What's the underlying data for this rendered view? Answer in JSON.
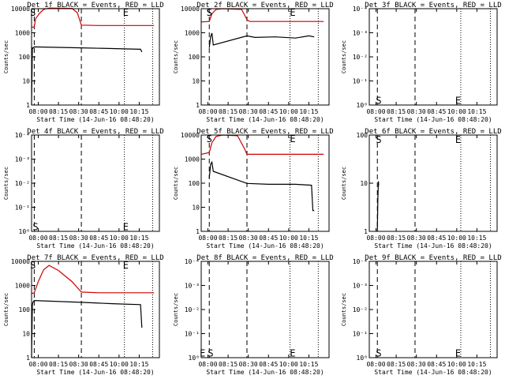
{
  "figure": {
    "background": "#ffffff",
    "axis_color": "#000000",
    "events_color": "#000000",
    "lld_color": "#cc0000"
  },
  "chart_data": [
    {
      "type": "line",
      "title": "Det 1f BLACK = Events, RED = LLD",
      "xlabel": "Start Time (14-Jun-16 08:48:20)",
      "ylabel": "Counts/sec",
      "x_tick_labels": [
        "08:00",
        "08:15",
        "08:30",
        "08:45",
        "10:00",
        "10:15"
      ],
      "y_tick_labels": [
        "1",
        "10",
        "100",
        "1000",
        "10000"
      ],
      "y_scale": "log",
      "ylim": [
        1,
        15000
      ],
      "grid": false,
      "dashed_lines_minutes": [
        2,
        37
      ],
      "dotted_lines_minutes": [
        69,
        90
      ],
      "annotations": [
        {
          "text": "S",
          "minute": 1,
          "y": 10000
        },
        {
          "text": "E",
          "minute": 70,
          "y": 10000
        }
      ],
      "series": [
        {
          "name": "BLACK = Events",
          "color": "#000000",
          "minute_start": 0,
          "minute_end": 82,
          "points": [
            [
              0,
              1.0
            ],
            [
              0.6,
              300
            ],
            [
              1,
              290
            ],
            [
              2,
              330
            ],
            [
              37,
              300
            ],
            [
              60,
              280
            ],
            [
              81,
              260
            ],
            [
              82,
              200
            ]
          ]
        },
        {
          "name": "RED = LLD",
          "color": "#cc0000",
          "minute_start": 0,
          "minute_end": 91,
          "points": [
            [
              0,
              2400
            ],
            [
              2,
              2400
            ],
            [
              3,
              5500
            ],
            [
              6,
              9500
            ],
            [
              9,
              14000
            ],
            [
              13,
              16000
            ],
            [
              30,
              15500
            ],
            [
              34,
              10000
            ],
            [
              37,
              2900
            ],
            [
              50,
              2800
            ],
            [
              91,
              2800
            ]
          ]
        }
      ]
    },
    {
      "type": "line",
      "title": "Det 2f BLACK = Events, RED = LLD",
      "xlabel": "Start Time (14-Jun-16 08:48:20)",
      "ylabel": "Counts/sec",
      "x_tick_labels": [
        "08:00",
        "08:15",
        "08:30",
        "08:45",
        "10:00",
        "10:15"
      ],
      "y_tick_labels": [
        "1",
        "10",
        "100",
        "1000",
        "10000"
      ],
      "y_scale": "log",
      "ylim": [
        1,
        15000
      ],
      "grid": false,
      "dashed_lines_minutes": [
        6,
        34
      ],
      "dotted_lines_minutes": [
        66,
        87
      ],
      "annotations": [
        {
          "text": "S",
          "minute": 6,
          "y": 10000
        },
        {
          "text": "E",
          "minute": 68,
          "y": 10000
        }
      ],
      "series": [
        {
          "name": "BLACK = Events",
          "color": "#000000",
          "minute_start": 6,
          "minute_end": 84,
          "points": [
            [
              6,
              300
            ],
            [
              7,
              900
            ],
            [
              8,
              1300
            ],
            [
              9,
              400
            ],
            [
              34,
              1000
            ],
            [
              40,
              850
            ],
            [
              55,
              900
            ],
            [
              70,
              800
            ],
            [
              80,
              1000
            ],
            [
              84,
              900
            ]
          ]
        },
        {
          "name": "RED = LLD",
          "color": "#cc0000",
          "minute_start": 0,
          "minute_end": 91,
          "points": [
            [
              0,
              4000
            ],
            [
              6,
              4200
            ],
            [
              8,
              9000
            ],
            [
              11,
              14000
            ],
            [
              16,
              15000
            ],
            [
              30,
              14000
            ],
            [
              34,
              5000
            ],
            [
              36,
              4200
            ],
            [
              91,
              4200
            ]
          ]
        }
      ]
    },
    {
      "type": "line",
      "title": "Det 3f BLACK = Events, RED = LLD",
      "xlabel": "Start Time (14-Jun-16 08:48:20)",
      "ylabel": "Counts/sec",
      "x_tick_labels": [
        "08:00",
        "08:15",
        "08:30",
        "08:45",
        "10:00",
        "10:15"
      ],
      "y_tick_labels": [
        "10⁰",
        "10⁻¹",
        "10⁻²",
        "10⁻³",
        "10⁻⁴"
      ],
      "y_scale": "log",
      "ylim": [
        1,
        100000
      ],
      "grid": false,
      "dashed_lines_minutes": [
        6,
        34
      ],
      "dotted_lines_minutes": [
        68,
        90
      ],
      "annotations": [
        {
          "text": "S",
          "minute": 7,
          "y": 1.7
        },
        {
          "text": "E",
          "minute": 66,
          "y": 1.7
        }
      ],
      "series": []
    },
    {
      "type": "line",
      "title": "Det 4f BLACK = Events, RED = LLD",
      "xlabel": "Start Time (14-Jun-16 08:48:20)",
      "ylabel": "Counts/sec",
      "x_tick_labels": [
        "08:00",
        "08:15",
        "08:30",
        "08:45",
        "10:00",
        "10:15"
      ],
      "y_tick_labels": [
        "10⁰",
        "10⁻¹",
        "10⁻²",
        "10⁻³",
        "10⁻⁴"
      ],
      "y_scale": "log",
      "ylim": [
        1,
        100000
      ],
      "grid": false,
      "dashed_lines_minutes": [
        2,
        37
      ],
      "dotted_lines_minutes": [
        69,
        90
      ],
      "annotations": [
        {
          "text": "S",
          "minute": 3,
          "y": 1.7
        },
        {
          "text": "E",
          "minute": 70,
          "y": 1.7
        }
      ],
      "series": []
    },
    {
      "type": "line",
      "title": "Det 5f BLACK = Events, RED = LLD",
      "xlabel": "Start Time (14-Jun-16 08:48:20)",
      "ylabel": "Counts/sec",
      "x_tick_labels": [
        "08:00",
        "08:15",
        "08:30",
        "08:45",
        "10:00",
        "10:15"
      ],
      "y_tick_labels": [
        "1",
        "10",
        "100",
        "1000",
        "10000"
      ],
      "y_scale": "log",
      "ylim": [
        1,
        15000
      ],
      "grid": false,
      "dashed_lines_minutes": [
        6,
        34
      ],
      "dotted_lines_minutes": [
        66,
        87
      ],
      "annotations": [
        {
          "text": "S",
          "minute": 6,
          "y": 10000
        },
        {
          "text": "E",
          "minute": 68,
          "y": 10000
        }
      ],
      "series": [
        {
          "name": "BLACK = Events",
          "color": "#000000",
          "minute_start": 6,
          "minute_end": 84,
          "points": [
            [
              6,
              200
            ],
            [
              7,
              800
            ],
            [
              8,
              1000
            ],
            [
              9,
              400
            ],
            [
              34,
              120
            ],
            [
              50,
              110
            ],
            [
              70,
              110
            ],
            [
              82,
              100
            ],
            [
              83,
              8
            ],
            [
              84,
              8
            ]
          ]
        },
        {
          "name": "RED = LLD",
          "color": "#cc0000",
          "minute_start": 0,
          "minute_end": 91,
          "points": [
            [
              0,
              2200
            ],
            [
              6,
              2600
            ],
            [
              8,
              7000
            ],
            [
              11,
              13000
            ],
            [
              16,
              15000
            ],
            [
              27,
              14000
            ],
            [
              32,
              4000
            ],
            [
              34,
              2200
            ],
            [
              91,
              2200
            ]
          ]
        }
      ]
    },
    {
      "type": "line",
      "title": "Det 6f BLACK = Events, RED = LLD",
      "xlabel": "Start Time (14-Jun-16 08:48:20)",
      "ylabel": "Counts/sec",
      "x_tick_labels": [
        "08:00",
        "08:15",
        "08:30",
        "08:45",
        "10:00",
        "10:15"
      ],
      "y_tick_labels": [
        "1",
        "10",
        "100"
      ],
      "y_scale": "log",
      "ylim": [
        1,
        100
      ],
      "grid": false,
      "dashed_lines_minutes": [
        6,
        34
      ],
      "dotted_lines_minutes": [
        68,
        90
      ],
      "annotations": [
        {
          "text": "S",
          "minute": 7,
          "y": 80
        },
        {
          "text": "E",
          "minute": 66,
          "y": 80
        }
      ],
      "series": [
        {
          "name": "BLACK = Events",
          "color": "#000000",
          "minute_start": 6,
          "minute_end": 7,
          "points": [
            [
              6,
              1
            ],
            [
              6.4,
              5
            ],
            [
              6.8,
              11
            ],
            [
              7,
              9
            ]
          ]
        }
      ]
    },
    {
      "type": "line",
      "title": "Det 7f BLACK = Events, RED = LLD",
      "xlabel": "Start Time (14-Jun-16 08:48:20)",
      "ylabel": "Counts/sec",
      "x_tick_labels": [
        "08:00",
        "08:15",
        "08:30",
        "08:45",
        "10:00",
        "10:15"
      ],
      "y_tick_labels": [
        "1",
        "10",
        "100",
        "1000",
        "10000"
      ],
      "y_scale": "log",
      "ylim": [
        1,
        15000
      ],
      "grid": false,
      "dashed_lines_minutes": [
        2,
        37
      ],
      "dotted_lines_minutes": [
        69,
        90
      ],
      "annotations": [
        {
          "text": "S",
          "minute": 1,
          "y": 10000
        },
        {
          "text": "E",
          "minute": 70,
          "y": 10000
        }
      ],
      "series": [
        {
          "name": "BLACK = Events",
          "color": "#000000",
          "minute_start": 0,
          "minute_end": 82,
          "points": [
            [
              0,
              1.0
            ],
            [
              0.6,
              200
            ],
            [
              1,
              250
            ],
            [
              2,
              300
            ],
            [
              37,
              250
            ],
            [
              60,
              220
            ],
            [
              81,
              200
            ],
            [
              82,
              20
            ]
          ]
        },
        {
          "name": "RED = LLD",
          "color": "#cc0000",
          "minute_start": 0,
          "minute_end": 91,
          "points": [
            [
              0,
              600
            ],
            [
              2,
              650
            ],
            [
              5,
              2000
            ],
            [
              9,
              6500
            ],
            [
              13,
              10000
            ],
            [
              20,
              6000
            ],
            [
              30,
              2000
            ],
            [
              37,
              700
            ],
            [
              50,
              650
            ],
            [
              91,
              650
            ]
          ]
        }
      ]
    },
    {
      "type": "line",
      "title": "Det 8f BLACK = Events, RED = LLD",
      "xlabel": "Start Time (14-Jun-16 08:48:20)",
      "ylabel": "Counts/sec",
      "x_tick_labels": [
        "08:00",
        "08:15",
        "08:30",
        "08:45",
        "10:00",
        "10:15"
      ],
      "y_tick_labels": [
        "10⁰",
        "10⁻¹",
        "10⁻²",
        "10⁻³",
        "10⁻⁴"
      ],
      "y_scale": "log",
      "ylim": [
        1,
        100000
      ],
      "grid": false,
      "dashed_lines_minutes": [
        6,
        34
      ],
      "dotted_lines_minutes": [
        66,
        87
      ],
      "annotations": [
        {
          "text": "E",
          "minute": 1,
          "y": 1.7
        },
        {
          "text": "S",
          "minute": 7,
          "y": 1.7
        },
        {
          "text": "E",
          "minute": 68,
          "y": 1.7
        }
      ],
      "series": []
    },
    {
      "type": "line",
      "title": "Det 9f BLACK = Events, RED = LLD",
      "xlabel": "Start Time (14-Jun-16 08:48:20)",
      "ylabel": "Counts/sec",
      "x_tick_labels": [
        "08:00",
        "08:15",
        "08:30",
        "08:45",
        "10:00",
        "10:15"
      ],
      "y_tick_labels": [
        "10⁰",
        "10⁻¹",
        "10⁻²",
        "10⁻³",
        "10⁻⁴"
      ],
      "y_scale": "log",
      "ylim": [
        1,
        100000
      ],
      "grid": false,
      "dashed_lines_minutes": [
        6,
        34
      ],
      "dotted_lines_minutes": [
        68,
        90
      ],
      "annotations": [
        {
          "text": "S",
          "minute": 7,
          "y": 1.7
        },
        {
          "text": "E",
          "minute": 66,
          "y": 1.7
        }
      ],
      "series": []
    }
  ]
}
